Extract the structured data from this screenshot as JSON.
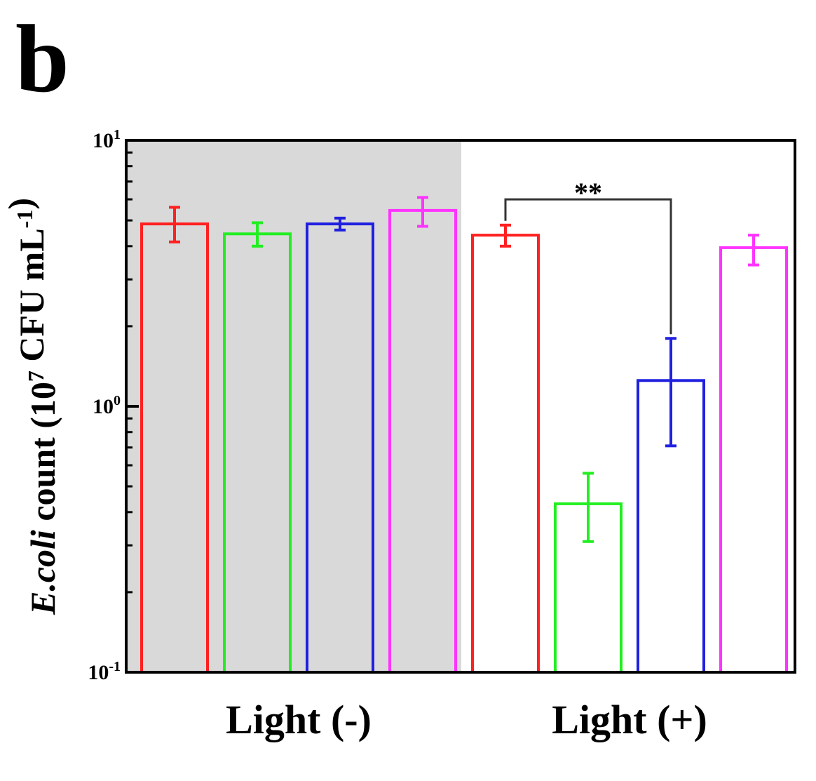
{
  "panel_label": "b",
  "chart_data": {
    "type": "bar",
    "log_scale_y": true,
    "ylim": [
      0.1,
      10
    ],
    "ylabel": {
      "species": "E.coli",
      "rest": " count (10",
      "exponent": "7",
      "unit": " CFU mL",
      "unit_exponent": "-1",
      "close": ")"
    },
    "y_ticks": [
      {
        "value": 0.1,
        "base": "10",
        "exp": "-1"
      },
      {
        "value": 1,
        "base": "10",
        "exp": "0"
      },
      {
        "value": 10,
        "base": "10",
        "exp": "1"
      }
    ],
    "groups": [
      {
        "label": "Light (-)",
        "shaded": true,
        "bars": [
          {
            "value": 4.85,
            "err_low": 4.15,
            "err_high": 5.6,
            "color": "#ff2020"
          },
          {
            "value": 4.45,
            "err_low": 4.0,
            "err_high": 4.9,
            "color": "#22ee22"
          },
          {
            "value": 4.85,
            "err_low": 4.6,
            "err_high": 5.1,
            "color": "#2020e0"
          },
          {
            "value": 5.45,
            "err_low": 4.75,
            "err_high": 6.1,
            "color": "#ff33ff"
          }
        ]
      },
      {
        "label": "Light (+)",
        "shaded": false,
        "bars": [
          {
            "value": 4.4,
            "err_low": 4.0,
            "err_high": 4.8,
            "color": "#ff2020"
          },
          {
            "value": 0.43,
            "err_low": 0.31,
            "err_high": 0.56,
            "color": "#22ee22"
          },
          {
            "value": 1.25,
            "err_low": 0.71,
            "err_high": 1.8,
            "color": "#2020e0"
          },
          {
            "value": 3.95,
            "err_low": 3.4,
            "err_high": 4.4,
            "color": "#ff33ff"
          }
        ]
      }
    ],
    "significance": {
      "label": "**",
      "from_group": 1,
      "from_bar": 0,
      "to_group": 1,
      "to_bar": 2,
      "level": 6.0
    },
    "colors": {
      "shade": "#d9d9d9",
      "axis": "#000000",
      "bracket": "#333333"
    }
  }
}
